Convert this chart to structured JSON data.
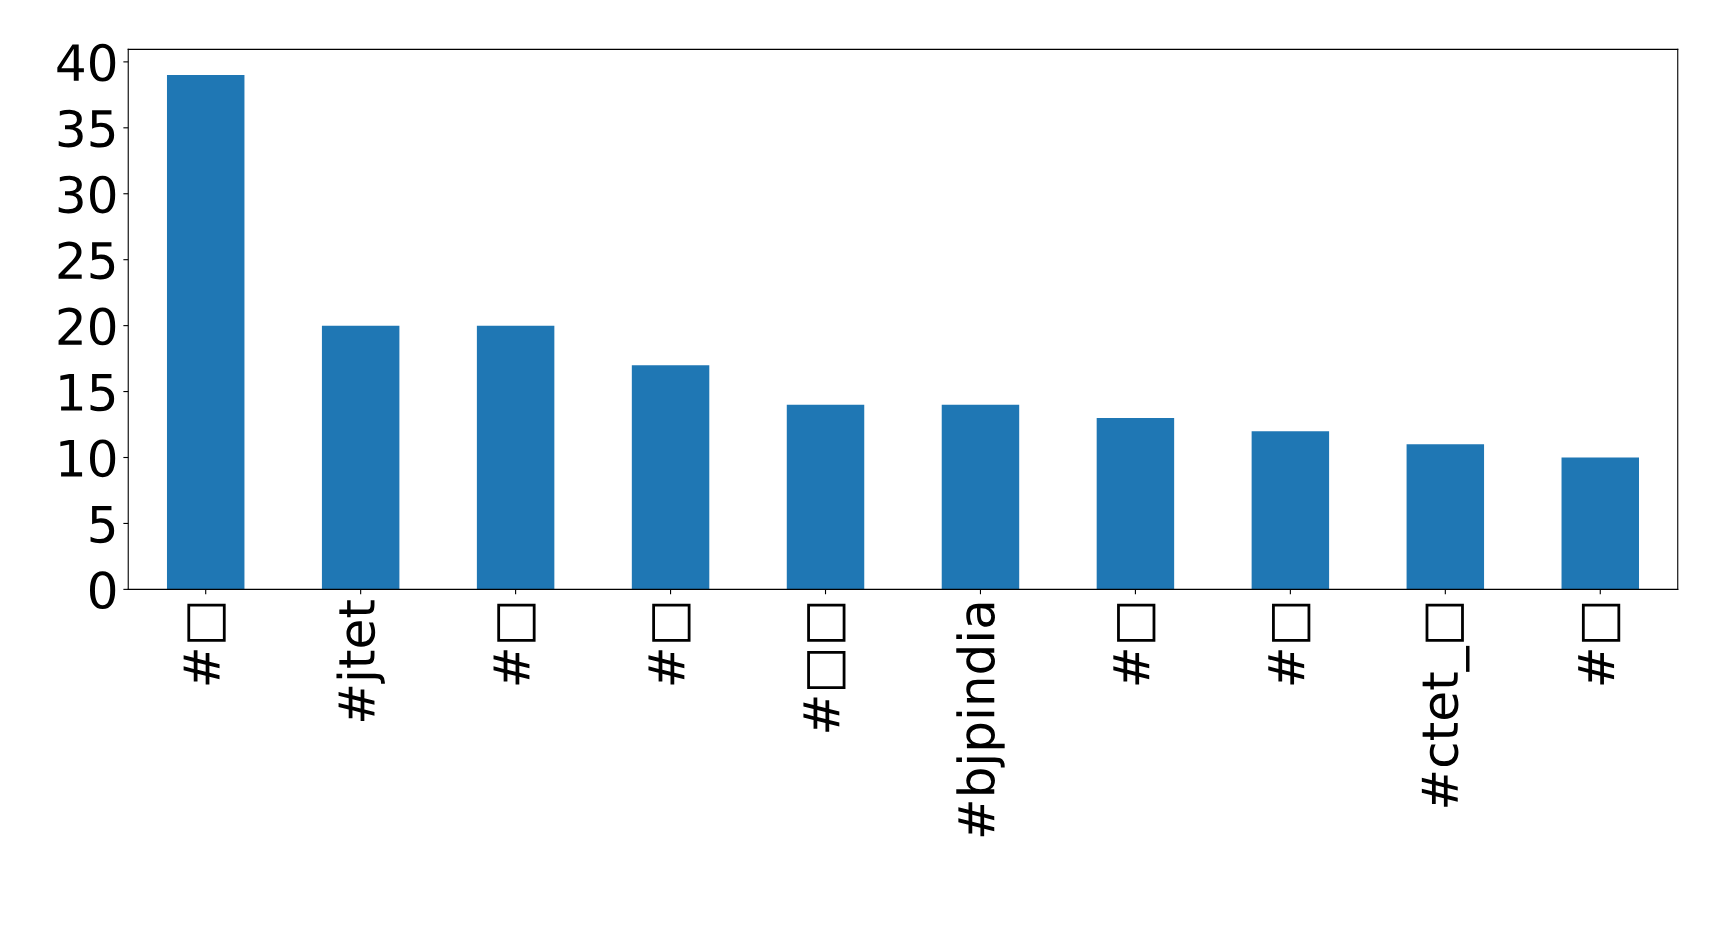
{
  "chart_data": {
    "type": "bar",
    "categories": [
      "#□",
      "#jtet",
      "#□",
      "#□",
      "#□□",
      "#bjpindia",
      "#□",
      "#□",
      "#ctet_□",
      "#□"
    ],
    "values": [
      39,
      20,
      20,
      17,
      14,
      14,
      13,
      12,
      11,
      10
    ],
    "color": "#1f77b4",
    "ylim": [
      0,
      40.95
    ],
    "yticks": [
      0,
      5,
      10,
      15,
      20,
      25,
      30,
      35,
      40
    ],
    "grid": false
  }
}
